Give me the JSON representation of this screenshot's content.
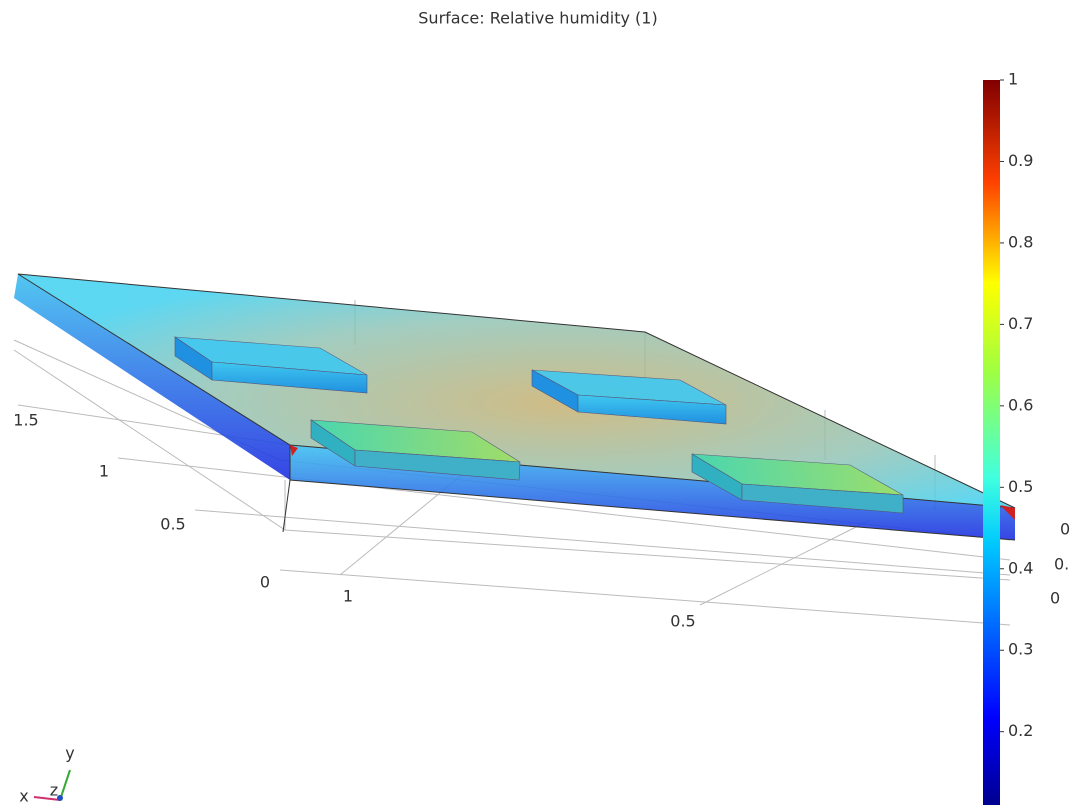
{
  "title": "Surface: Relative humidity (1)",
  "colorbar": {
    "range": [
      0.11,
      1
    ],
    "ticks": [
      1,
      0.9,
      0.8,
      0.7,
      0.6,
      0.5,
      0.4,
      0.3,
      0.2
    ]
  },
  "y_axis_labels": [
    "1.5",
    "1",
    "0.5",
    "0"
  ],
  "x_axis_labels": [
    "1",
    "0.5"
  ],
  "z_axis_labels": [
    "0",
    "0.",
    "0"
  ],
  "triad": {
    "x": "x",
    "y": "y",
    "z": "z"
  }
}
